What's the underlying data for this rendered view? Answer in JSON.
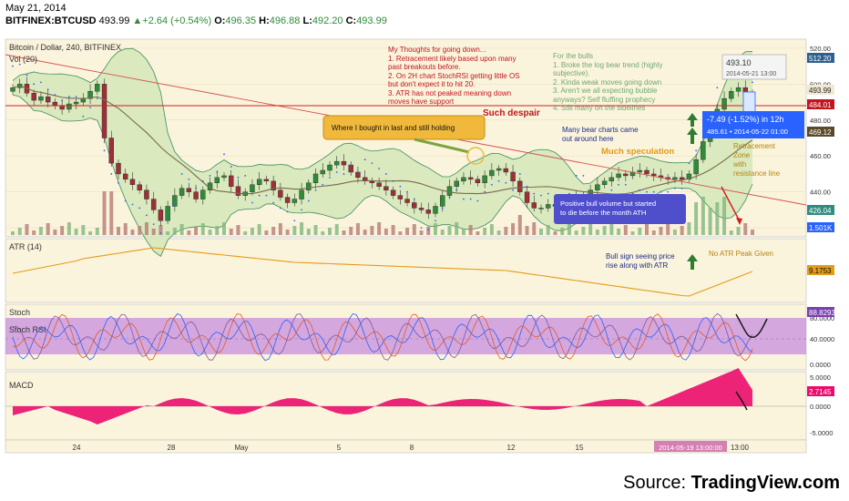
{
  "header": {
    "date": "May 21, 2014",
    "symbol": "BITFINEX:BTCUSD",
    "last": "493.99",
    "change": "+2.64 (+0.54%)",
    "o_label": "O:",
    "o_val": "496.35",
    "h_label": "H:",
    "h_val": "496.88",
    "l_label": "L:",
    "l_val": "492.20",
    "c_label": "C:",
    "c_val": "493.99"
  },
  "panes": {
    "main_title": "Bitcoin / Dollar, 240, BITFINEX",
    "vol_label": "Vol (20)",
    "atr_label": "ATR (14)",
    "stoch_label": "Stoch",
    "stochrsi_label": "Stoch RSI",
    "macd_label": "MACD"
  },
  "annotations": {
    "thoughts_title": "My Thoughts for going down...",
    "thoughts_lines": [
      "1. Retracement likely based upon many",
      "past breakouts before.",
      "2. On 2H chart StochRSI getting little OS",
      "but don't expect it to hit 20.",
      "3. ATR has not peaked meaning down",
      "moves have support"
    ],
    "bulls_lines": [
      "For the bulls",
      "1. Broke the log bear trend (highly",
      "subjective).",
      "2. Kinda weak moves going down",
      "3. Aren't we all expecting bubble",
      "anyways? Self fluffing prophecy",
      "4. Still many on the sidelines"
    ],
    "despair": "Such despair",
    "bought": "Where I bought in last and still holding",
    "bear_charts_1": "Many bear charts came",
    "bear_charts_2": "out around here",
    "speculation": "Much speculation",
    "bull_volume_1": "Positive bull volume but started",
    "bull_volume_2": "to die before the month ATH",
    "retracement_1": "Retracement",
    "retracement_2": "Zone",
    "retracement_3": "with",
    "retracement_4": "resistance line",
    "bull_sign_1": "Bull sign seeing price",
    "bull_sign_2": "rise along with ATR",
    "no_atr_peak": "No ATR Peak Given"
  },
  "measure": {
    "change": "-7.49 (-1.52%) in 12h",
    "detail": "485.61 • 2014-05-22 01:00",
    "target_price": "493.10",
    "target_time": "2014-05-21 13:00"
  },
  "price_badges": {
    "p512": "512.20",
    "p493": "493.99",
    "p484": "484.01",
    "p469": "469.12",
    "p426": "426.04",
    "vol": "1.501K",
    "atr": "9.1753",
    "stoch": "88.8293",
    "macd": "2.7145"
  },
  "source": {
    "prefix": "Source: ",
    "brand": "TradingView.com"
  },
  "colors": {
    "background": "#fbf4dc",
    "bb_fill": "#d3e6b9",
    "bb_line": "#3d8c5d",
    "ma_line": "#7a6a4c",
    "candle_up": "#2f8b3a",
    "candle_down": "#9c2f3a",
    "atr": "#e39b1a",
    "stoch_band": "#c78ee0",
    "macd": "#ea0c6b",
    "red_line": "#d02020",
    "trend_line": "#d45050"
  },
  "chart_data": {
    "type": "candlestick",
    "title": "Bitcoin / Dollar, 240, BITFINEX",
    "x_ticks": [
      "24",
      "28",
      "May",
      "5",
      "8",
      "12",
      "15",
      "2014-05-19 13:00:00",
      "13:00"
    ],
    "price_axis_ticks": [
      420,
      440,
      460,
      480,
      500,
      520
    ],
    "price_range": [
      416,
      524
    ],
    "price_series_description": "BTCUSD 4h closes, late April to 21 May 2014",
    "close": [
      498,
      500,
      495,
      491,
      493,
      490,
      488,
      486,
      489,
      490,
      492,
      496,
      500,
      470,
      456,
      450,
      447,
      444,
      441,
      436,
      430,
      424,
      432,
      438,
      442,
      440,
      436,
      441,
      445,
      448,
      449,
      443,
      438,
      440,
      444,
      447,
      446,
      441,
      437,
      434,
      436,
      441,
      445,
      450,
      452,
      455,
      457,
      455,
      451,
      448,
      446,
      445,
      443,
      441,
      438,
      436,
      434,
      431,
      430,
      428,
      432,
      438,
      443,
      446,
      448,
      447,
      445,
      449,
      452,
      453,
      451,
      446,
      440,
      434,
      431,
      431,
      433,
      432,
      434,
      436,
      437,
      438,
      441,
      444,
      446,
      448,
      450,
      449,
      451,
      452,
      450,
      449,
      448,
      447,
      448,
      447,
      450,
      458,
      468,
      476,
      486,
      492,
      496,
      498,
      495,
      494
    ],
    "atr_axis_ticks": [],
    "atr_last": 9.1753,
    "stoch_axis_ticks": [
      40,
      80,
      0
    ],
    "stoch_last": 88.8293,
    "macd_axis_ticks": [
      5,
      0,
      -5
    ],
    "macd_last": 2.7145
  }
}
